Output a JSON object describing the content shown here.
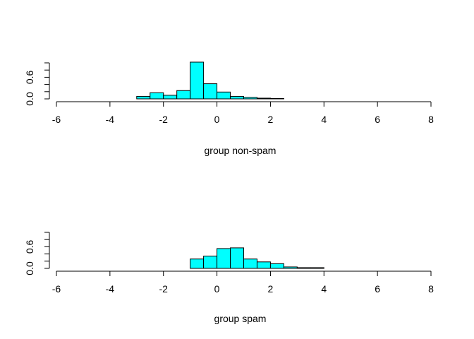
{
  "chart_data": [
    {
      "type": "bar",
      "xlabel": "group non-spam",
      "ylabel": "",
      "bar_color": "#00FFFF",
      "border_color": "#000000",
      "bin_width": 0.5,
      "xlim": [
        -6,
        8
      ],
      "ylim": [
        0,
        1.0
      ],
      "x_ticks": [
        "-6",
        "-4",
        "-2",
        "0",
        "2",
        "4",
        "6",
        "8"
      ],
      "y_ticks": [
        "0.0",
        "0.6"
      ],
      "bin_starts": [
        -5.5,
        -5.0,
        -4.5,
        -4.0,
        -3.5,
        -3.0,
        -2.5,
        -2.0,
        -1.5,
        -1.0,
        -0.5,
        0.0,
        0.5,
        1.0,
        1.5,
        2.0,
        2.5,
        3.0,
        3.5,
        4.0,
        4.5,
        5.0,
        5.5,
        6.0,
        6.5,
        7.0,
        7.5
      ],
      "values": [
        0.0,
        0.0,
        0.0,
        0.0,
        0.0,
        0.07,
        0.17,
        0.1,
        0.23,
        1.02,
        0.42,
        0.19,
        0.07,
        0.04,
        0.02,
        0.01,
        0.0,
        0.0,
        0.0,
        0.0,
        0.0,
        0.0,
        0.0,
        0.0,
        0.0,
        0.0,
        0.0
      ]
    },
    {
      "type": "bar",
      "xlabel": "group spam",
      "ylabel": "",
      "bar_color": "#00FFFF",
      "border_color": "#000000",
      "bin_width": 0.5,
      "xlim": [
        -6,
        8
      ],
      "ylim": [
        0,
        1.0
      ],
      "x_ticks": [
        "-6",
        "-4",
        "-2",
        "0",
        "2",
        "4",
        "6",
        "8"
      ],
      "y_ticks": [
        "0.0",
        "0.6"
      ],
      "bin_starts": [
        -5.5,
        -5.0,
        -4.5,
        -4.0,
        -3.5,
        -3.0,
        -2.5,
        -2.0,
        -1.5,
        -1.0,
        -0.5,
        0.0,
        0.5,
        1.0,
        1.5,
        2.0,
        2.5,
        3.0,
        3.5,
        4.0,
        4.5,
        5.0,
        5.5,
        6.0,
        6.5,
        7.0,
        7.5
      ],
      "values": [
        0.0,
        0.0,
        0.0,
        0.0,
        0.0,
        0.0,
        0.0,
        0.0,
        0.0,
        0.26,
        0.34,
        0.55,
        0.57,
        0.26,
        0.18,
        0.13,
        0.04,
        0.02,
        0.02,
        0.0,
        0.0,
        0.0,
        0.0,
        0.0,
        0.0,
        0.0,
        0.0
      ]
    }
  ]
}
